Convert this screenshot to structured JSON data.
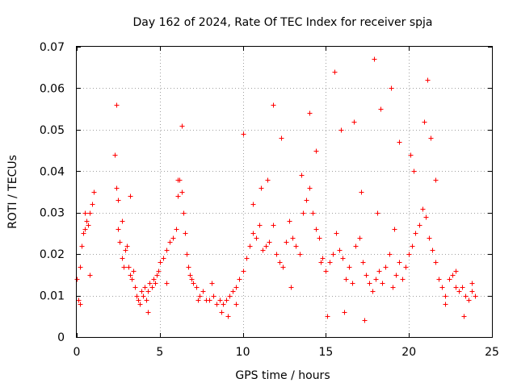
{
  "chart_data": {
    "type": "scatter",
    "title": "Day 162 of 2024, Rate Of TEC Index for receiver spja",
    "xlabel": "GPS time / hours",
    "ylabel": "ROTI / TECUs",
    "xlim": [
      0,
      25
    ],
    "ylim": [
      0,
      0.07
    ],
    "grid": true,
    "marker": "+",
    "color": "#ff0000",
    "x_ticks": [
      0,
      5,
      10,
      15,
      20,
      25
    ],
    "x_tick_labels": [
      "0",
      "5",
      "10",
      "15",
      "20",
      "25"
    ],
    "y_ticks": [
      0,
      0.01,
      0.02,
      0.03,
      0.04,
      0.05,
      0.06,
      0.07
    ],
    "y_tick_labels": [
      "0",
      "0.01",
      "0.02",
      "0.03",
      "0.04",
      "0.05",
      "0.06",
      "0.07"
    ],
    "series": [
      {
        "name": "ROTI",
        "x": [
          0.0,
          0.1,
          0.2,
          0.3,
          0.4,
          0.5,
          0.6,
          0.7,
          0.8,
          0.9,
          1.0,
          2.3,
          2.4,
          2.5,
          2.6,
          2.7,
          2.8,
          2.9,
          3.0,
          3.1,
          3.2,
          3.3,
          3.4,
          3.5,
          3.6,
          3.7,
          3.8,
          3.9,
          4.0,
          4.1,
          4.2,
          4.3,
          4.4,
          4.5,
          4.6,
          4.7,
          4.8,
          4.9,
          5.0,
          5.2,
          5.4,
          5.6,
          5.8,
          6.0,
          6.1,
          6.2,
          6.3,
          6.4,
          6.5,
          6.6,
          6.7,
          6.8,
          6.9,
          7.0,
          7.2,
          7.4,
          7.6,
          7.8,
          8.0,
          8.2,
          8.4,
          8.6,
          8.8,
          9.0,
          9.2,
          9.4,
          9.6,
          9.8,
          10.0,
          10.2,
          10.4,
          10.6,
          10.8,
          11.0,
          11.2,
          11.4,
          11.6,
          11.8,
          12.0,
          12.2,
          12.4,
          12.6,
          12.8,
          13.0,
          13.2,
          13.4,
          13.6,
          13.8,
          14.0,
          14.2,
          14.4,
          14.6,
          14.8,
          15.0,
          15.2,
          15.4,
          15.6,
          15.8,
          16.0,
          16.2,
          16.4,
          16.6,
          16.8,
          17.0,
          17.2,
          17.4,
          17.6,
          17.8,
          18.0,
          18.2,
          18.4,
          18.6,
          18.8,
          19.0,
          19.2,
          19.4,
          19.6,
          19.8,
          20.0,
          20.2,
          20.4,
          20.6,
          20.8,
          21.0,
          21.2,
          21.4,
          21.6,
          21.8,
          22.0,
          22.2,
          22.4,
          22.6,
          22.8,
          23.0,
          23.2,
          23.4,
          23.6,
          23.8,
          24.0,
          2.4,
          6.3,
          10.0,
          11.8,
          14.0,
          15.5,
          17.9,
          18.9,
          21.1,
          0.2,
          0.8,
          2.5,
          3.2,
          5.4,
          6.1,
          7.3,
          8.7,
          9.1,
          10.6,
          11.5,
          12.3,
          13.5,
          14.4,
          15.1,
          15.9,
          16.7,
          17.3,
          18.3,
          19.4,
          20.3,
          20.9,
          21.6,
          22.2,
          23.3,
          0.5,
          2.7,
          4.3,
          6.5,
          8.1,
          9.6,
          11.1,
          12.9,
          14.7,
          16.1,
          17.1,
          18.1,
          19.1,
          20.1,
          21.3,
          22.8,
          23.8
        ],
        "y": [
          0.014,
          0.009,
          0.017,
          0.022,
          0.025,
          0.026,
          0.028,
          0.027,
          0.03,
          0.032,
          0.035,
          0.044,
          0.036,
          0.026,
          0.023,
          0.019,
          0.017,
          0.021,
          0.022,
          0.017,
          0.015,
          0.014,
          0.016,
          0.012,
          0.01,
          0.009,
          0.008,
          0.011,
          0.01,
          0.012,
          0.009,
          0.011,
          0.013,
          0.012,
          0.014,
          0.013,
          0.015,
          0.016,
          0.018,
          0.019,
          0.021,
          0.023,
          0.024,
          0.026,
          0.034,
          0.038,
          0.035,
          0.03,
          0.025,
          0.02,
          0.017,
          0.015,
          0.014,
          0.013,
          0.012,
          0.01,
          0.011,
          0.009,
          0.009,
          0.01,
          0.008,
          0.009,
          0.008,
          0.009,
          0.01,
          0.011,
          0.012,
          0.014,
          0.016,
          0.019,
          0.022,
          0.025,
          0.024,
          0.027,
          0.021,
          0.022,
          0.023,
          0.027,
          0.02,
          0.018,
          0.017,
          0.023,
          0.028,
          0.024,
          0.022,
          0.02,
          0.03,
          0.033,
          0.036,
          0.03,
          0.026,
          0.024,
          0.019,
          0.016,
          0.018,
          0.02,
          0.025,
          0.021,
          0.019,
          0.014,
          0.017,
          0.013,
          0.022,
          0.024,
          0.018,
          0.015,
          0.013,
          0.011,
          0.014,
          0.016,
          0.013,
          0.017,
          0.02,
          0.012,
          0.015,
          0.018,
          0.014,
          0.017,
          0.02,
          0.022,
          0.025,
          0.027,
          0.031,
          0.029,
          0.024,
          0.021,
          0.018,
          0.014,
          0.012,
          0.01,
          0.014,
          0.015,
          0.012,
          0.011,
          0.012,
          0.01,
          0.009,
          0.011,
          0.01,
          0.056,
          0.051,
          0.049,
          0.056,
          0.054,
          0.064,
          0.067,
          0.06,
          0.062,
          0.008,
          0.015,
          0.033,
          0.034,
          0.013,
          0.038,
          0.009,
          0.006,
          0.005,
          0.032,
          0.038,
          0.048,
          0.039,
          0.045,
          0.005,
          0.05,
          0.052,
          0.004,
          0.055,
          0.047,
          0.04,
          0.052,
          0.038,
          0.008,
          0.005,
          0.03,
          0.028,
          0.006,
          0.025,
          0.013,
          0.008,
          0.036,
          0.012,
          0.018,
          0.006,
          0.035,
          0.03,
          0.026,
          0.044,
          0.048,
          0.016,
          0.013
        ]
      }
    ]
  }
}
